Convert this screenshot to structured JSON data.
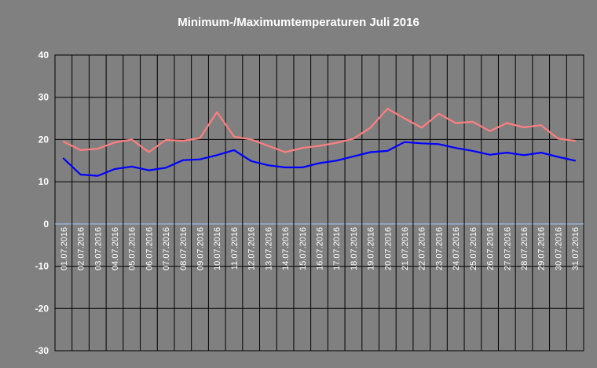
{
  "chart_data": {
    "type": "line",
    "title": "Minimum-/Maximumtemperaturen Juli 2016",
    "xlabel": "",
    "ylabel": "",
    "ylim": [
      -30,
      40
    ],
    "ytick_step": 10,
    "y_ticks": [
      "40",
      "30",
      "20",
      "10",
      "0",
      "-10",
      "-20",
      "-30"
    ],
    "grid": true,
    "legend": "none",
    "categories": [
      "01.07.2016",
      "02.07.2016",
      "03.07.2016",
      "04.07.2016",
      "05.07.2016",
      "06.07.2016",
      "07.07.2016",
      "08.07.2016",
      "09.07.2016",
      "10.07.2016",
      "11.07.2016",
      "12.07.2016",
      "13.07.2016",
      "14.07.2016",
      "15.07.2016",
      "16.07.2016",
      "17.07.2016",
      "18.07.2016",
      "19.07.2016",
      "20.07.2016",
      "21.07.2016",
      "22.07.2016",
      "23.07.2016",
      "24.07.2016",
      "25.07.2016",
      "26.07.2016",
      "27.07.2016",
      "28.07.2016",
      "29.07.2016",
      "30.07.2016",
      "31.07.2016"
    ],
    "series": [
      {
        "values": [
          19.5,
          17.5,
          17.8,
          19.3,
          20.0,
          17.0,
          19.9,
          19.7,
          20.3,
          26.5,
          20.7,
          20.0,
          18.5,
          17.0,
          18.0,
          18.5,
          19.2,
          20.2,
          22.8,
          27.3,
          25.0,
          22.8,
          26.1,
          23.9,
          24.2,
          22.0,
          23.9,
          22.9,
          23.4,
          20.2,
          19.7
        ],
        "color": "#ff7f7f"
      },
      {
        "values": [
          15.5,
          11.7,
          11.4,
          13.0,
          13.6,
          12.7,
          13.3,
          15.1,
          15.3,
          16.3,
          17.5,
          14.9,
          13.9,
          13.4,
          13.4,
          14.4,
          15.0,
          16.0,
          17.0,
          17.3,
          19.4,
          19.1,
          18.9,
          18.0,
          17.3,
          16.4,
          16.9,
          16.3,
          16.9,
          15.9,
          15.0
        ],
        "color": "#0000ff"
      }
    ]
  }
}
